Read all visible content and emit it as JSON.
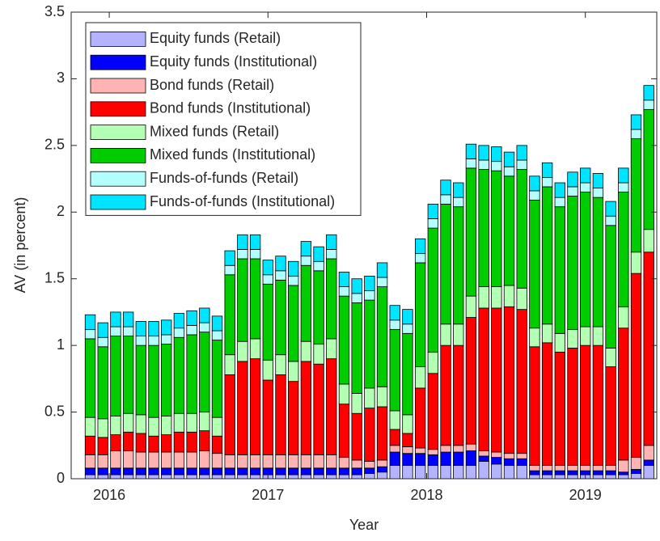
{
  "chart_data": {
    "type": "stacked_bar",
    "x_label": "Year",
    "y_label": "AV (in percent)",
    "x": [
      2015.88,
      2015.96,
      2016.04,
      2016.12,
      2016.2,
      2016.28,
      2016.36,
      2016.44,
      2016.52,
      2016.6,
      2016.68,
      2016.76,
      2016.84,
      2016.92,
      2017.0,
      2017.08,
      2017.16,
      2017.24,
      2017.32,
      2017.4,
      2017.48,
      2017.56,
      2017.64,
      2017.72,
      2017.8,
      2017.88,
      2017.96,
      2018.04,
      2018.12,
      2018.2,
      2018.28,
      2018.36,
      2018.44,
      2018.52,
      2018.6,
      2018.68,
      2018.76,
      2018.84,
      2018.92,
      2019.0,
      2019.08,
      2019.16,
      2019.24,
      2019.32,
      2019.4
    ],
    "xlim": [
      2015.76,
      2019.45
    ],
    "xticks": [
      2016,
      2017,
      2018,
      2019
    ],
    "ylim": [
      0,
      3.5
    ],
    "yticks": [
      0,
      0.5,
      1,
      1.5,
      2,
      2.5,
      3,
      3.5
    ],
    "legend_position": "upper left",
    "series": [
      {
        "name": "Equity funds (Retail)",
        "color": "#b3b3ff",
        "values": [
          0.03,
          0.03,
          0.03,
          0.03,
          0.03,
          0.03,
          0.03,
          0.03,
          0.03,
          0.03,
          0.03,
          0.03,
          0.03,
          0.03,
          0.03,
          0.03,
          0.03,
          0.03,
          0.03,
          0.03,
          0.03,
          0.03,
          0.04,
          0.05,
          0.1,
          0.1,
          0.1,
          0.1,
          0.1,
          0.1,
          0.1,
          0.13,
          0.11,
          0.1,
          0.1,
          0.03,
          0.03,
          0.03,
          0.03,
          0.03,
          0.03,
          0.03,
          0.03,
          0.04,
          0.1
        ]
      },
      {
        "name": "Equity funds (Institutional)",
        "color": "#0000ff",
        "values": [
          0.05,
          0.05,
          0.05,
          0.05,
          0.05,
          0.05,
          0.05,
          0.05,
          0.05,
          0.05,
          0.05,
          0.05,
          0.05,
          0.05,
          0.05,
          0.05,
          0.05,
          0.05,
          0.05,
          0.05,
          0.05,
          0.05,
          0.04,
          0.04,
          0.1,
          0.09,
          0.09,
          0.08,
          0.1,
          0.1,
          0.11,
          0.04,
          0.05,
          0.05,
          0.05,
          0.03,
          0.03,
          0.03,
          0.03,
          0.03,
          0.03,
          0.03,
          0.02,
          0.03,
          0.04
        ]
      },
      {
        "name": "Bond funds (Retail)",
        "color": "#ffb3b3",
        "values": [
          0.1,
          0.1,
          0.13,
          0.13,
          0.12,
          0.12,
          0.12,
          0.12,
          0.12,
          0.13,
          0.11,
          0.1,
          0.1,
          0.1,
          0.1,
          0.1,
          0.1,
          0.1,
          0.1,
          0.1,
          0.08,
          0.06,
          0.05,
          0.05,
          0.05,
          0.05,
          0.04,
          0.04,
          0.05,
          0.05,
          0.05,
          0.04,
          0.04,
          0.04,
          0.04,
          0.04,
          0.04,
          0.04,
          0.04,
          0.04,
          0.04,
          0.04,
          0.09,
          0.09,
          0.11
        ]
      },
      {
        "name": "Bond funds (Institutional)",
        "color": "#ff0000",
        "values": [
          0.14,
          0.13,
          0.12,
          0.14,
          0.14,
          0.12,
          0.13,
          0.15,
          0.15,
          0.15,
          0.13,
          0.6,
          0.7,
          0.72,
          0.56,
          0.6,
          0.55,
          0.7,
          0.68,
          0.72,
          0.4,
          0.35,
          0.4,
          0.4,
          0.12,
          0.1,
          0.45,
          0.57,
          0.75,
          0.75,
          0.95,
          1.07,
          1.08,
          1.1,
          1.08,
          0.89,
          0.92,
          0.85,
          0.88,
          0.9,
          0.9,
          0.74,
          0.99,
          1.38,
          1.45
        ]
      },
      {
        "name": "Mixed funds (Retail)",
        "color": "#b3ffb3",
        "values": [
          0.14,
          0.14,
          0.14,
          0.14,
          0.14,
          0.14,
          0.14,
          0.14,
          0.14,
          0.14,
          0.14,
          0.15,
          0.15,
          0.15,
          0.15,
          0.15,
          0.15,
          0.15,
          0.15,
          0.15,
          0.15,
          0.15,
          0.15,
          0.15,
          0.14,
          0.14,
          0.16,
          0.16,
          0.16,
          0.16,
          0.16,
          0.16,
          0.16,
          0.16,
          0.16,
          0.14,
          0.14,
          0.14,
          0.14,
          0.14,
          0.14,
          0.14,
          0.16,
          0.16,
          0.17
        ]
      },
      {
        "name": "Mixed funds (Institutional)",
        "color": "#00cc00",
        "values": [
          0.59,
          0.54,
          0.6,
          0.58,
          0.52,
          0.54,
          0.54,
          0.57,
          0.59,
          0.6,
          0.58,
          0.6,
          0.62,
          0.6,
          0.57,
          0.56,
          0.57,
          0.57,
          0.55,
          0.6,
          0.66,
          0.68,
          0.66,
          0.75,
          0.61,
          0.61,
          0.78,
          0.93,
          0.9,
          0.88,
          0.96,
          0.88,
          0.87,
          0.82,
          0.89,
          0.96,
          1.03,
          0.95,
          1.0,
          1.01,
          0.97,
          0.92,
          0.86,
          0.85,
          0.9
        ]
      },
      {
        "name": "Funds-of-funds (Retail)",
        "color": "#b3ffff",
        "values": [
          0.07,
          0.07,
          0.07,
          0.07,
          0.07,
          0.07,
          0.07,
          0.07,
          0.07,
          0.07,
          0.07,
          0.07,
          0.07,
          0.07,
          0.07,
          0.07,
          0.07,
          0.07,
          0.07,
          0.07,
          0.07,
          0.07,
          0.07,
          0.07,
          0.07,
          0.07,
          0.07,
          0.07,
          0.07,
          0.07,
          0.07,
          0.07,
          0.07,
          0.07,
          0.07,
          0.07,
          0.07,
          0.07,
          0.07,
          0.07,
          0.07,
          0.07,
          0.07,
          0.07,
          0.07
        ]
      },
      {
        "name": "Funds-of-funds (Institutional)",
        "color": "#00e5ff",
        "values": [
          0.11,
          0.11,
          0.11,
          0.11,
          0.11,
          0.11,
          0.11,
          0.11,
          0.11,
          0.11,
          0.11,
          0.11,
          0.11,
          0.11,
          0.11,
          0.11,
          0.11,
          0.11,
          0.11,
          0.11,
          0.11,
          0.11,
          0.11,
          0.11,
          0.11,
          0.11,
          0.11,
          0.11,
          0.11,
          0.11,
          0.11,
          0.11,
          0.11,
          0.11,
          0.11,
          0.11,
          0.11,
          0.11,
          0.11,
          0.11,
          0.11,
          0.11,
          0.11,
          0.11,
          0.11
        ]
      }
    ]
  }
}
